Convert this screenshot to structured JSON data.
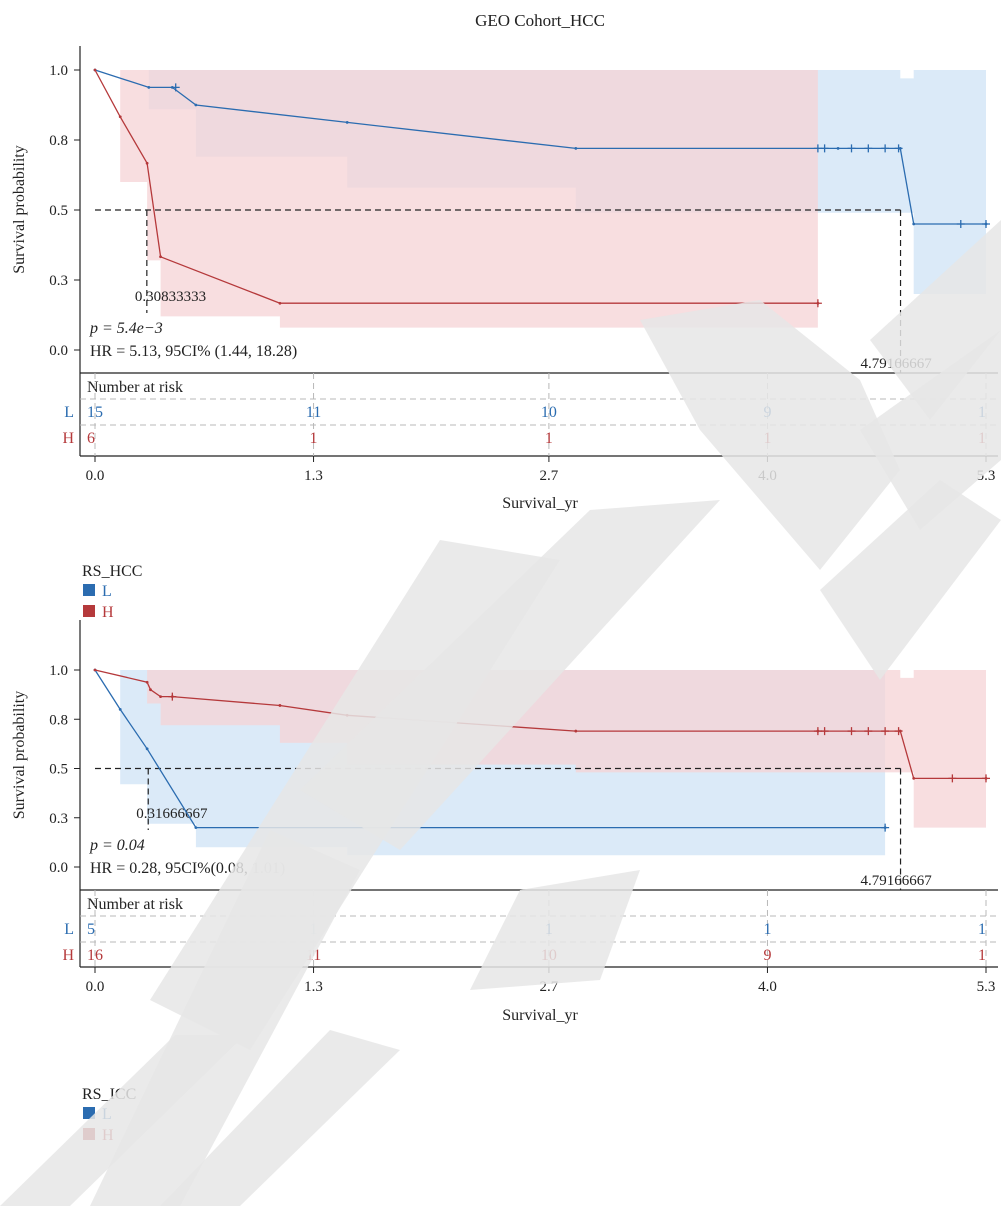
{
  "figure_title": "GEO Cohort_HCC",
  "colors": {
    "L": "#2b6cb0",
    "H": "#b5393b",
    "L_band": "#cfe3f5",
    "H_band": "#f6d3d5",
    "overlap_band": "#b7a9c4",
    "watermark": "#e6e6e6",
    "axis": "#222222",
    "risk_grid": "#b8b8b8"
  },
  "chart_data": [
    {
      "type": "line",
      "subtype": "kaplan-meier",
      "xlabel": "Survival_yr",
      "ylabel": "Survival probability",
      "xlim": [
        0,
        5.3
      ],
      "ylim": [
        0,
        1.05
      ],
      "x_ticks": [
        0.0,
        1.3,
        2.7,
        4.0,
        5.3
      ],
      "x_tick_labels": [
        "0.0",
        "1.3",
        "2.7",
        "4.0",
        "5.3"
      ],
      "y_ticks": [
        0.0,
        0.25,
        0.5,
        0.75,
        1.0
      ],
      "y_tick_labels": [
        "0.0",
        "0.3",
        "0.5",
        "0.8",
        "1.0"
      ],
      "legend_title": "RS_HCC",
      "legend_placement": "below-left",
      "stats": {
        "p": "p = 5.4e−3",
        "hr": "HR = 5.13, 95CI% (1.44, 18.28)"
      },
      "median_guide": {
        "y": 0.5,
        "medians": [
          0.30833333,
          4.79166667
        ],
        "labels": [
          "0.30833333",
          "4.79166667"
        ]
      },
      "risk_table": {
        "title": "Number at risk",
        "times": [
          0.0,
          1.3,
          2.7,
          4.0,
          5.3
        ],
        "rows": [
          {
            "group": "L",
            "counts": [
              "15",
              "11",
              "10",
              "9",
              "1"
            ]
          },
          {
            "group": "H",
            "counts": [
              "6",
              "1",
              "1",
              "1",
              "1"
            ]
          }
        ]
      },
      "series": [
        {
          "name": "L",
          "color_key": "L",
          "x": [
            0,
            0.32,
            0.46,
            0.6,
            1.5,
            2.86,
            4.42,
            4.79,
            4.87,
            5.3
          ],
          "y": [
            1.0,
            0.938,
            0.938,
            0.875,
            0.813,
            0.72,
            0.72,
            0.72,
            0.45,
            0.45
          ],
          "steps": [
            [
              0,
              1.0
            ],
            [
              0.14,
              0.96
            ],
            [
              0.32,
              0.938
            ],
            [
              0.6,
              0.875
            ],
            [
              1.5,
              0.813
            ],
            [
              2.86,
              0.72
            ],
            [
              4.87,
              0.45
            ]
          ],
          "censor_times": [
            0.48,
            4.3,
            4.34,
            4.5,
            4.6,
            4.7,
            4.78,
            5.15,
            5.3
          ],
          "ci_upper": [
            [
              0,
              1.0
            ],
            [
              1.5,
              1.0
            ],
            [
              4.79,
              0.97
            ],
            [
              4.87,
              1.0
            ],
            [
              5.3,
              1.0
            ]
          ],
          "ci_lower": [
            [
              0,
              1.0
            ],
            [
              0.32,
              0.86
            ],
            [
              0.6,
              0.69
            ],
            [
              1.5,
              0.58
            ],
            [
              2.86,
              0.49
            ],
            [
              4.79,
              0.49
            ],
            [
              4.87,
              0.2
            ],
            [
              5.3,
              0.2
            ]
          ]
        },
        {
          "name": "H",
          "color_key": "H",
          "x": [
            0,
            0.15,
            0.31,
            0.39,
            1.1,
            4.3
          ],
          "y": [
            1.0,
            0.833,
            0.667,
            0.333,
            0.167,
            0.167
          ],
          "steps": [
            [
              0,
              1.0
            ],
            [
              0.15,
              0.833
            ],
            [
              0.31,
              0.667
            ],
            [
              0.39,
              0.333
            ],
            [
              1.1,
              0.167
            ]
          ],
          "censor_times": [
            4.3
          ],
          "ci_upper": [
            [
              0,
              1.0
            ],
            [
              4.3,
              1.0
            ]
          ],
          "ci_lower": [
            [
              0,
              1.0
            ],
            [
              0.15,
              0.6
            ],
            [
              0.31,
              0.32
            ],
            [
              0.39,
              0.12
            ],
            [
              1.1,
              0.08
            ],
            [
              4.3,
              0.03
            ]
          ]
        }
      ]
    },
    {
      "type": "line",
      "subtype": "kaplan-meier",
      "xlabel": "Survival_yr",
      "ylabel": "Survival probability",
      "xlim": [
        0,
        5.3
      ],
      "ylim": [
        0,
        1.05
      ],
      "x_ticks": [
        0.0,
        1.3,
        2.7,
        4.0,
        5.3
      ],
      "x_tick_labels": [
        "0.0",
        "1.3",
        "2.7",
        "4.0",
        "5.3"
      ],
      "y_ticks": [
        0.0,
        0.25,
        0.5,
        0.75,
        1.0
      ],
      "y_tick_labels": [
        "0.0",
        "0.3",
        "0.5",
        "0.8",
        "1.0"
      ],
      "legend_title": "RS_ICC",
      "legend_placement": "below-left",
      "stats": {
        "p": "p = 0.04",
        "hr": "HR = 0.28, 95CI%(0.08, 1.01)"
      },
      "median_guide": {
        "y": 0.5,
        "medians": [
          0.31666667,
          4.79166667
        ],
        "labels": [
          "0.31666667",
          "4.79166667"
        ]
      },
      "risk_table": {
        "title": "Number at risk",
        "times": [
          0.0,
          1.3,
          2.7,
          4.0,
          5.3
        ],
        "rows": [
          {
            "group": "L",
            "counts": [
              "5",
              "1",
              "1",
              "1",
              "1"
            ]
          },
          {
            "group": "H",
            "counts": [
              "16",
              "11",
              "10",
              "9",
              "1"
            ]
          }
        ]
      },
      "series": [
        {
          "name": "L",
          "color_key": "L",
          "x": [
            0,
            0.15,
            0.31,
            0.6,
            4.7
          ],
          "y": [
            1.0,
            0.8,
            0.6,
            0.2,
            0.2
          ],
          "steps": [
            [
              0,
              1.0
            ],
            [
              0.15,
              0.8
            ],
            [
              0.31,
              0.6
            ],
            [
              0.6,
              0.2
            ]
          ],
          "censor_times": [
            4.7
          ],
          "ci_upper": [
            [
              0,
              1.0
            ],
            [
              4.7,
              1.0
            ]
          ],
          "ci_lower": [
            [
              0,
              1.0
            ],
            [
              0.15,
              0.42
            ],
            [
              0.31,
              0.22
            ],
            [
              0.6,
              0.1
            ],
            [
              1.5,
              0.06
            ],
            [
              4.7,
              0.05
            ]
          ]
        },
        {
          "name": "H",
          "color_key": "H",
          "x": [
            0,
            0.31,
            0.33,
            0.39,
            0.46,
            1.1,
            1.5,
            2.86,
            4.3,
            4.79,
            4.87,
            5.3
          ],
          "y": [
            1.0,
            0.938,
            0.9,
            0.865,
            0.865,
            0.82,
            0.77,
            0.69,
            0.69,
            0.69,
            0.45,
            0.45
          ],
          "steps": [
            [
              0,
              1.0
            ],
            [
              0.31,
              0.938
            ],
            [
              0.33,
              0.9
            ],
            [
              0.39,
              0.865
            ],
            [
              1.1,
              0.82
            ],
            [
              1.5,
              0.77
            ],
            [
              2.86,
              0.69
            ],
            [
              4.87,
              0.45
            ]
          ],
          "censor_times": [
            0.46,
            4.3,
            4.34,
            4.5,
            4.6,
            4.7,
            4.78,
            5.1,
            5.3
          ],
          "ci_upper": [
            [
              0,
              1.0
            ],
            [
              1.5,
              1.0
            ],
            [
              4.79,
              0.96
            ],
            [
              4.87,
              1.0
            ],
            [
              5.3,
              1.0
            ]
          ],
          "ci_lower": [
            [
              0,
              1.0
            ],
            [
              0.31,
              0.83
            ],
            [
              0.39,
              0.72
            ],
            [
              1.1,
              0.63
            ],
            [
              1.5,
              0.52
            ],
            [
              2.86,
              0.48
            ],
            [
              4.79,
              0.48
            ],
            [
              4.87,
              0.2
            ],
            [
              5.3,
              0.2
            ]
          ]
        }
      ]
    }
  ]
}
